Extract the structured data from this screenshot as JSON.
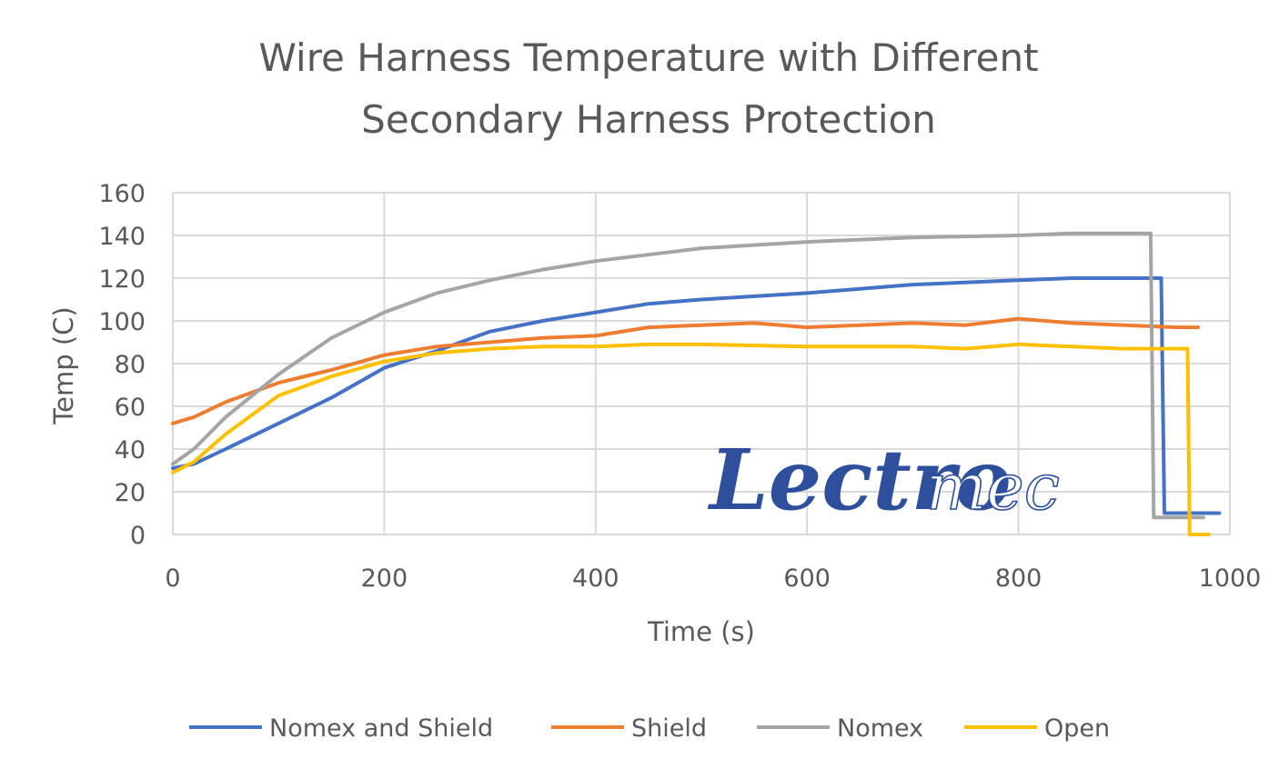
{
  "chart_data": {
    "type": "line",
    "title_lines": [
      "Wire Harness Temperature with Different",
      "Secondary Harness Protection"
    ],
    "xlabel": "Time (s)",
    "ylabel": "Temp (C)",
    "xlim": [
      0,
      1000
    ],
    "ylim": [
      0,
      160
    ],
    "x_ticks": [
      0,
      200,
      400,
      600,
      800,
      1000
    ],
    "y_ticks": [
      0,
      20,
      40,
      60,
      80,
      100,
      120,
      140,
      160
    ],
    "grid": true,
    "legend_position": "bottom",
    "series": [
      {
        "name": "Nomex and Shield",
        "color": "#4472C4",
        "points": [
          [
            0,
            31
          ],
          [
            20,
            33
          ],
          [
            50,
            40
          ],
          [
            100,
            52
          ],
          [
            150,
            64
          ],
          [
            200,
            78
          ],
          [
            250,
            86
          ],
          [
            300,
            95
          ],
          [
            350,
            100
          ],
          [
            400,
            104
          ],
          [
            450,
            108
          ],
          [
            500,
            110
          ],
          [
            600,
            113
          ],
          [
            700,
            117
          ],
          [
            800,
            119
          ],
          [
            850,
            120
          ],
          [
            935,
            120
          ],
          [
            938,
            10
          ],
          [
            990,
            10
          ]
        ]
      },
      {
        "name": "Shield",
        "color": "#ED7D31",
        "points": [
          [
            0,
            52
          ],
          [
            20,
            55
          ],
          [
            50,
            62
          ],
          [
            100,
            71
          ],
          [
            150,
            77
          ],
          [
            200,
            84
          ],
          [
            250,
            88
          ],
          [
            300,
            90
          ],
          [
            350,
            92
          ],
          [
            400,
            93
          ],
          [
            450,
            97
          ],
          [
            500,
            98
          ],
          [
            550,
            99
          ],
          [
            600,
            97
          ],
          [
            650,
            98
          ],
          [
            700,
            99
          ],
          [
            750,
            98
          ],
          [
            800,
            101
          ],
          [
            850,
            99
          ],
          [
            900,
            98
          ],
          [
            950,
            97
          ],
          [
            970,
            97
          ]
        ]
      },
      {
        "name": "Nomex",
        "color": "#A5A5A5",
        "points": [
          [
            0,
            33
          ],
          [
            20,
            40
          ],
          [
            50,
            55
          ],
          [
            100,
            75
          ],
          [
            150,
            92
          ],
          [
            200,
            104
          ],
          [
            250,
            113
          ],
          [
            300,
            119
          ],
          [
            350,
            124
          ],
          [
            400,
            128
          ],
          [
            450,
            131
          ],
          [
            500,
            134
          ],
          [
            600,
            137
          ],
          [
            700,
            139
          ],
          [
            800,
            140
          ],
          [
            850,
            141
          ],
          [
            925,
            141
          ],
          [
            928,
            8
          ],
          [
            975,
            8
          ]
        ]
      },
      {
        "name": "Open",
        "color": "#FFC000",
        "points": [
          [
            0,
            29
          ],
          [
            20,
            34
          ],
          [
            50,
            47
          ],
          [
            100,
            65
          ],
          [
            150,
            74
          ],
          [
            200,
            81
          ],
          [
            250,
            85
          ],
          [
            300,
            87
          ],
          [
            350,
            88
          ],
          [
            400,
            88
          ],
          [
            450,
            89
          ],
          [
            500,
            89
          ],
          [
            600,
            88
          ],
          [
            700,
            88
          ],
          [
            750,
            87
          ],
          [
            800,
            89
          ],
          [
            850,
            88
          ],
          [
            900,
            87
          ],
          [
            960,
            87
          ],
          [
            962,
            0
          ],
          [
            980,
            0
          ]
        ]
      }
    ]
  },
  "logo": {
    "solid_text": "Lectro",
    "outline_text": "mec"
  }
}
